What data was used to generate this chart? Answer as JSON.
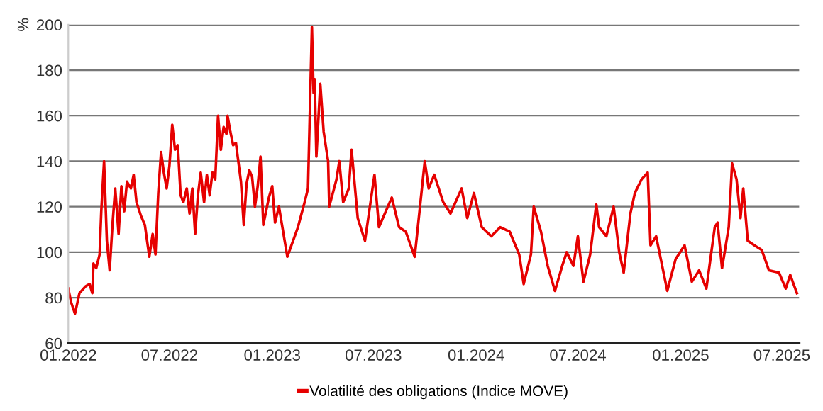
{
  "chart_data": {
    "type": "line",
    "ylabel": "%",
    "x": [
      "2022-01-01",
      "2022-01-06",
      "2022-01-13",
      "2022-01-21",
      "2022-02-01",
      "2022-02-08",
      "2022-02-13",
      "2022-02-15",
      "2022-02-20",
      "2022-02-26",
      "2022-03-01",
      "2022-03-06",
      "2022-03-11",
      "2022-03-16",
      "2022-03-21",
      "2022-03-26",
      "2022-04-01",
      "2022-04-06",
      "2022-04-11",
      "2022-04-16",
      "2022-04-23",
      "2022-04-28",
      "2022-05-03",
      "2022-05-11",
      "2022-05-18",
      "2022-05-26",
      "2022-06-01",
      "2022-06-06",
      "2022-06-11",
      "2022-06-16",
      "2022-06-21",
      "2022-06-26",
      "2022-07-01",
      "2022-07-06",
      "2022-07-11",
      "2022-07-16",
      "2022-07-21",
      "2022-07-26",
      "2022-08-01",
      "2022-08-06",
      "2022-08-11",
      "2022-08-16",
      "2022-08-21",
      "2022-08-26",
      "2022-09-01",
      "2022-09-06",
      "2022-09-11",
      "2022-09-16",
      "2022-09-21",
      "2022-09-26",
      "2022-10-01",
      "2022-10-06",
      "2022-10-11",
      "2022-10-13",
      "2022-10-18",
      "2022-10-23",
      "2022-10-28",
      "2022-11-06",
      "2022-11-11",
      "2022-11-16",
      "2022-11-21",
      "2022-11-26",
      "2022-12-01",
      "2022-12-06",
      "2022-12-11",
      "2022-12-16",
      "2022-12-21",
      "2022-12-26",
      "2023-01-01",
      "2023-01-06",
      "2023-01-13",
      "2023-01-28",
      "2023-02-16",
      "2023-02-28",
      "2023-03-06",
      "2023-03-13",
      "2023-03-16",
      "2023-03-18",
      "2023-03-21",
      "2023-03-28",
      "2023-04-03",
      "2023-04-11",
      "2023-04-13",
      "2023-04-26",
      "2023-05-01",
      "2023-05-08",
      "2023-05-18",
      "2023-05-23",
      "2023-06-03",
      "2023-06-16",
      "2023-07-03",
      "2023-07-11",
      "2023-08-03",
      "2023-08-16",
      "2023-08-28",
      "2023-09-13",
      "2023-10-01",
      "2023-10-08",
      "2023-10-18",
      "2023-11-03",
      "2023-11-16",
      "2023-12-06",
      "2023-12-16",
      "2023-12-28",
      "2024-01-11",
      "2024-01-28",
      "2024-02-13",
      "2024-03-01",
      "2024-03-18",
      "2024-03-26",
      "2024-04-08",
      "2024-04-13",
      "2024-04-26",
      "2024-05-08",
      "2024-05-21",
      "2024-06-03",
      "2024-06-11",
      "2024-06-23",
      "2024-07-01",
      "2024-07-11",
      "2024-07-23",
      "2024-08-03",
      "2024-08-08",
      "2024-08-21",
      "2024-09-03",
      "2024-09-13",
      "2024-09-21",
      "2024-10-03",
      "2024-10-11",
      "2024-10-23",
      "2024-11-03",
      "2024-11-08",
      "2024-11-18",
      "2024-12-08",
      "2024-12-23",
      "2025-01-08",
      "2025-01-21",
      "2025-02-03",
      "2025-02-16",
      "2025-03-03",
      "2025-03-08",
      "2025-03-16",
      "2025-03-28",
      "2025-04-03",
      "2025-04-11",
      "2025-04-18",
      "2025-04-23",
      "2025-05-01",
      "2025-05-13",
      "2025-05-26",
      "2025-06-08",
      "2025-06-26",
      "2025-07-08",
      "2025-07-16",
      "2025-07-28"
    ],
    "series": [
      {
        "name": "Volatilité des obligations (Indice MOVE)",
        "color": "#e60000",
        "values": [
          84,
          78,
          73,
          82,
          85,
          86,
          82,
          95,
          93,
          99,
          118,
          140,
          105,
          92,
          112,
          128,
          108,
          129,
          118,
          131,
          128,
          134,
          122,
          116,
          112,
          98,
          108,
          99,
          126,
          144,
          135,
          128,
          138,
          156,
          145,
          147,
          125,
          122,
          128,
          117,
          128,
          108,
          125,
          135,
          122,
          134,
          125,
          135,
          132,
          160,
          145,
          155,
          152,
          160,
          153,
          147,
          148,
          131,
          112,
          130,
          136,
          133,
          120,
          129,
          142,
          112,
          118,
          124,
          129,
          113,
          120,
          98,
          111,
          122,
          128,
          199,
          170,
          176,
          142,
          174,
          153,
          140,
          120,
          132,
          140,
          122,
          128,
          145,
          115,
          105,
          134,
          111,
          124,
          111,
          109,
          98,
          140,
          128,
          134,
          122,
          117,
          128,
          115,
          126,
          111,
          107,
          111,
          109,
          99,
          86,
          99,
          120,
          109,
          94,
          83,
          94,
          100,
          94,
          107,
          87,
          99,
          121,
          111,
          107,
          120,
          100,
          91,
          117,
          126,
          132,
          135,
          103,
          107,
          83,
          97,
          103,
          87,
          92,
          84,
          111,
          113,
          93,
          111,
          139,
          132,
          115,
          128,
          105,
          103,
          101,
          92,
          91,
          84,
          90,
          82
        ]
      }
    ],
    "xlim": [
      "2022-01-01",
      "2025-08-01"
    ],
    "xticks": [
      {
        "value": "2022-01-01",
        "label": "01.2022"
      },
      {
        "value": "2022-07-01",
        "label": "07.2022"
      },
      {
        "value": "2023-01-01",
        "label": "01.2023"
      },
      {
        "value": "2023-07-01",
        "label": "07.2023"
      },
      {
        "value": "2024-01-01",
        "label": "01.2024"
      },
      {
        "value": "2024-07-01",
        "label": "07.2024"
      },
      {
        "value": "2025-01-01",
        "label": "01.2025"
      },
      {
        "value": "2025-07-01",
        "label": "07.2025"
      }
    ],
    "ylim": [
      60,
      200
    ],
    "yticks": [
      60,
      80,
      100,
      120,
      140,
      160,
      180,
      200
    ],
    "grid": "y",
    "legend": "bottom",
    "marker": "none",
    "line_style": "solid"
  }
}
